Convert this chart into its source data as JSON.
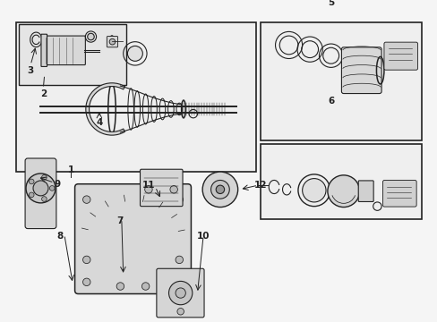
{
  "bg_color": "#f5f5f5",
  "line_color": "#222222",
  "figsize": [
    4.89,
    3.6
  ],
  "dpi": 100,
  "xlim": [
    0,
    9.78
  ],
  "ylim": [
    0,
    7.2
  ],
  "labels": [
    [
      "3",
      0.42,
      5.95
    ],
    [
      "2",
      0.72,
      5.38
    ],
    [
      "4",
      2.05,
      4.72
    ],
    [
      "1",
      1.38,
      3.58
    ],
    [
      "5",
      7.55,
      7.55
    ],
    [
      "6",
      7.55,
      5.22
    ],
    [
      "7",
      2.55,
      2.38
    ],
    [
      "8",
      1.12,
      2.02
    ],
    [
      "9",
      1.05,
      3.25
    ],
    [
      "10",
      4.52,
      2.02
    ],
    [
      "11",
      3.22,
      3.22
    ],
    [
      "12",
      5.88,
      3.22
    ]
  ]
}
